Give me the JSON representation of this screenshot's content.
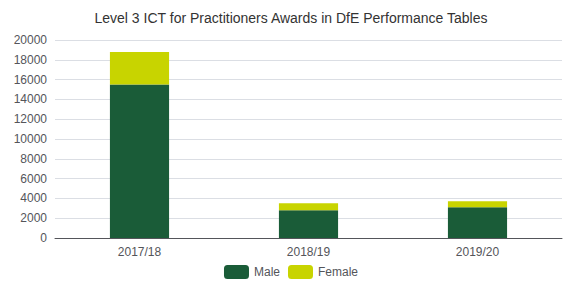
{
  "chart_data": {
    "type": "bar",
    "title": "Level 3 ICT for Practitioners Awards in DfE Performance Tables",
    "categories": [
      "2017/18",
      "2018/19",
      "2019/20"
    ],
    "series": [
      {
        "name": "Male",
        "color": "#1a5c38",
        "values": [
          15500,
          2800,
          3100
        ]
      },
      {
        "name": "Female",
        "color": "#c8d400",
        "values": [
          3300,
          700,
          600
        ]
      }
    ],
    "stacked": true,
    "ylim": [
      0,
      20000
    ],
    "yticks": [
      0,
      2000,
      4000,
      6000,
      8000,
      10000,
      12000,
      14000,
      16000,
      18000,
      20000
    ],
    "grid": true,
    "legend": "bottom"
  }
}
